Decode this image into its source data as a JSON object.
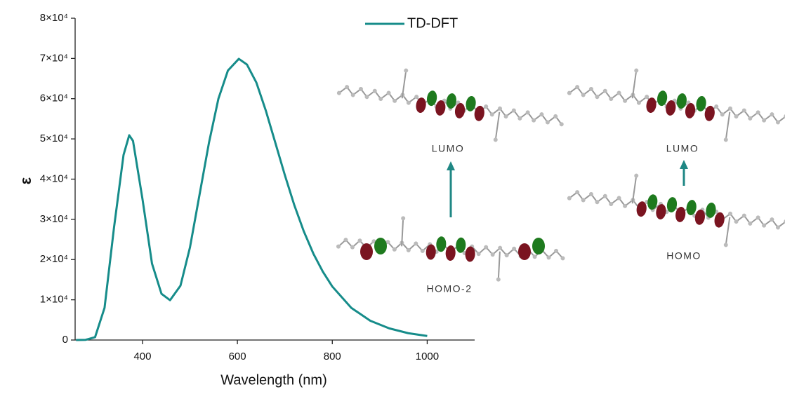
{
  "chart_data": {
    "type": "line",
    "x_label": "Wavelength (nm)",
    "y_label": "ε",
    "x": [
      260,
      280,
      300,
      320,
      340,
      360,
      372,
      380,
      400,
      420,
      440,
      458,
      480,
      500,
      520,
      540,
      560,
      580,
      603,
      620,
      640,
      660,
      680,
      700,
      720,
      740,
      760,
      780,
      800,
      840,
      880,
      920,
      960,
      1000
    ],
    "series": [
      {
        "name": "TD-DFT",
        "color": "#168c8a",
        "values": [
          0,
          50,
          700,
          8000,
          28000,
          46000,
          50900,
          49500,
          35000,
          19000,
          11500,
          9900,
          13500,
          23000,
          36000,
          49000,
          60000,
          67000,
          69900,
          68500,
          64000,
          57000,
          49000,
          41000,
          33500,
          27000,
          21500,
          17000,
          13300,
          8000,
          4800,
          2900,
          1700,
          1000
        ]
      }
    ],
    "xlim": [
      258,
      1100
    ],
    "xticks": [
      400,
      600,
      800,
      1000
    ],
    "ylim": [
      0,
      80000
    ],
    "yticks": [
      0,
      {
        "value": 10000,
        "label": "1×10⁴"
      },
      {
        "value": 20000,
        "label": "2×10⁴"
      },
      {
        "value": 30000,
        "label": "3×10⁴"
      },
      {
        "value": 40000,
        "label": "4×10⁴"
      },
      {
        "value": 50000,
        "label": "5×10⁴"
      },
      {
        "value": 60000,
        "label": "6×10⁴"
      },
      {
        "value": 70000,
        "label": "7×10⁴"
      },
      {
        "value": 80000,
        "label": "8×10⁴"
      }
    ],
    "legend": "top",
    "annotations": [
      "LUMO",
      "HOMO-2",
      "LUMO",
      "HOMO"
    ]
  }
}
